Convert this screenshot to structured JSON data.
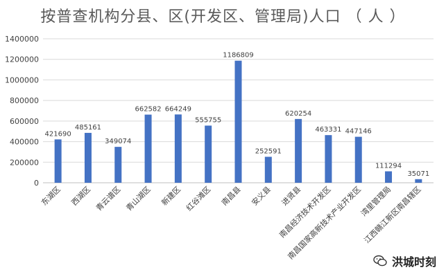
{
  "chart_data": {
    "type": "bar",
    "title": "按普查机构分县、区(开发区、管理局)人口 （ 人 ）",
    "categories": [
      "东湖区",
      "西湖区",
      "青云谱区",
      "青山湖区",
      "新建区",
      "红谷滩区",
      "南昌县",
      "安义县",
      "进贤县",
      "南昌经济技术开发区",
      "南昌国家高新技术产业开发区",
      "湾里管理局",
      "江西赣江新区南昌辖区"
    ],
    "values": [
      421690,
      485161,
      349074,
      662582,
      664249,
      555755,
      1186809,
      252591,
      620254,
      463331,
      447146,
      111294,
      35071
    ],
    "ylim": [
      0,
      1400000
    ],
    "yticks": [
      0,
      200000,
      400000,
      600000,
      800000,
      1000000,
      1200000,
      1400000
    ],
    "grid": true,
    "bar_color": "#4472C4"
  },
  "watermark": {
    "text": "洪城时刻",
    "icon": "wechat-icon"
  }
}
